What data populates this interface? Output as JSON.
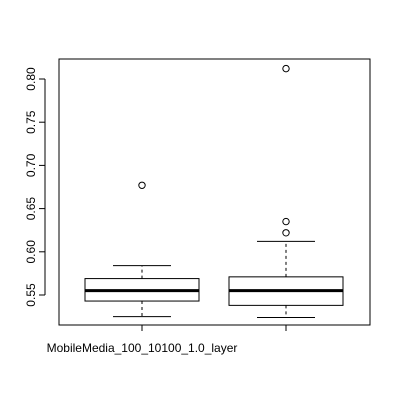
{
  "chart_data": {
    "type": "boxplot",
    "categories": [
      "MobileMedia_100_10100_1.0_layer",
      ""
    ],
    "boxes": [
      {
        "whisker_low": 0.525,
        "q1": 0.543,
        "median": 0.555,
        "q3": 0.569,
        "whisker_high": 0.584,
        "outliers": [
          0.677
        ]
      },
      {
        "whisker_low": 0.524,
        "q1": 0.538,
        "median": 0.555,
        "q3": 0.571,
        "whisker_high": 0.612,
        "outliers": [
          0.622,
          0.635,
          0.812
        ]
      }
    ],
    "y_ticks": [
      "0.55",
      "0.60",
      "0.65",
      "0.70",
      "0.75",
      "0.80"
    ],
    "ylim": [
      0.52,
      0.82
    ],
    "grid": false,
    "colors": {
      "box_fill": "#ffffff",
      "stroke": "#000000"
    }
  }
}
